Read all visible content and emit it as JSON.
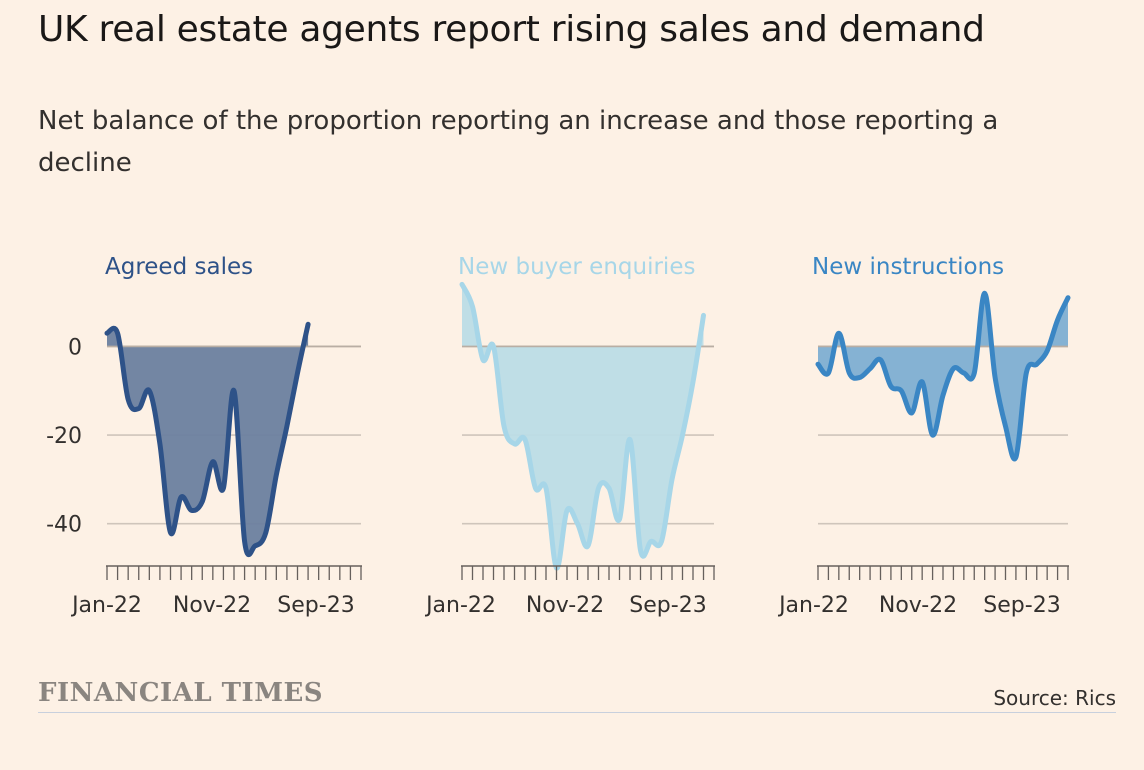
{
  "header": {
    "title": "UK real estate agents report rising sales and demand",
    "subtitle": "Net balance of the proportion reporting an increase and those reporting a decline"
  },
  "footer": {
    "brand": "FINANCIAL TIMES",
    "source": "Source: Rics"
  },
  "chart_data": [
    {
      "type": "area",
      "title": "Agreed sales",
      "color": "#2e5288",
      "fill": "#6b7f9f",
      "x": [
        "Jan-22",
        "Feb-22",
        "Mar-22",
        "Apr-22",
        "May-22",
        "Jun-22",
        "Jul-22",
        "Aug-22",
        "Sep-22",
        "Oct-22",
        "Nov-22",
        "Dec-22",
        "Jan-23",
        "Feb-23",
        "Mar-23",
        "Apr-23",
        "May-23",
        "Jun-23",
        "Jul-23",
        "Aug-23",
        "Sep-23",
        "Oct-23",
        "Nov-23",
        "Dec-23",
        "Jan-24"
      ],
      "values": [
        3,
        3,
        -12,
        -14,
        -10,
        -22,
        -42,
        -34,
        -37,
        -35,
        -26,
        -32,
        -10,
        -44,
        -45,
        -42,
        -29,
        -18,
        -6,
        5,
        null,
        null,
        null,
        null,
        null
      ],
      "xticks": [
        "Jan-22",
        "Nov-22",
        "Sep-23"
      ],
      "yticks": [
        0,
        -20,
        -40
      ],
      "ylim": [
        -50,
        15
      ]
    },
    {
      "type": "area",
      "title": "New buyer enquiries",
      "color": "#a7d6e8",
      "fill": "#bcdce6",
      "x": [
        "Jan-22",
        "Feb-22",
        "Mar-22",
        "Apr-22",
        "May-22",
        "Jun-22",
        "Jul-22",
        "Aug-22",
        "Sep-22",
        "Oct-22",
        "Nov-22",
        "Dec-22",
        "Jan-23",
        "Feb-23",
        "Mar-23",
        "Apr-23",
        "May-23",
        "Jun-23",
        "Jul-23",
        "Aug-23",
        "Sep-23",
        "Oct-23",
        "Nov-23",
        "Dec-23",
        "Jan-24"
      ],
      "values": [
        14,
        9,
        -3,
        0,
        -18,
        -22,
        -21,
        -32,
        -32,
        -50,
        -37,
        -40,
        -45,
        -32,
        -32,
        -39,
        -21,
        -46,
        -44,
        -44,
        -30,
        -20,
        -8,
        7,
        null
      ],
      "xticks": [
        "Jan-22",
        "Nov-22",
        "Sep-23"
      ],
      "yticks": [
        0,
        -20,
        -40
      ],
      "ylim": [
        -50,
        15
      ]
    },
    {
      "type": "area",
      "title": "New instructions",
      "color": "#3a86c4",
      "fill": "#7eaed2",
      "x": [
        "Jan-22",
        "Feb-22",
        "Mar-22",
        "Apr-22",
        "May-22",
        "Jun-22",
        "Jul-22",
        "Aug-22",
        "Sep-22",
        "Oct-22",
        "Nov-22",
        "Dec-22",
        "Jan-23",
        "Feb-23",
        "Mar-23",
        "Apr-23",
        "May-23",
        "Jun-23",
        "Jul-23",
        "Aug-23",
        "Sep-23",
        "Oct-23",
        "Nov-23",
        "Dec-23",
        "Jan-24"
      ],
      "values": [
        -4,
        -6,
        3,
        -6,
        -7,
        -5,
        -3,
        -9,
        -10,
        -15,
        -8,
        -20,
        -11,
        -5,
        -6,
        -6,
        12,
        -7,
        -18,
        -25,
        -6,
        -4,
        -1,
        6,
        11
      ],
      "xticks": [
        "Jan-22",
        "Nov-22",
        "Sep-23"
      ],
      "yticks": [
        0,
        -20,
        -40
      ],
      "ylim": [
        -50,
        15
      ]
    }
  ]
}
